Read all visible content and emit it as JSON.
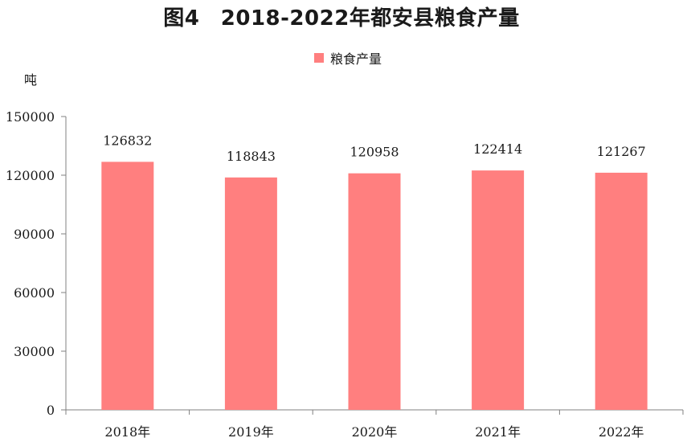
{
  "chart_data": {
    "type": "bar",
    "title": "图4　2018-2022年都安县粮食产量",
    "ylabel": "吨",
    "xlabel": "",
    "categories": [
      "2018年",
      "2019年",
      "2020年",
      "2021年",
      "2022年"
    ],
    "series": [
      {
        "name": "粮食产量",
        "values": [
          126832,
          118843,
          120958,
          122414,
          121267
        ],
        "color": "#ff7f7f"
      }
    ],
    "data_labels": [
      "126832",
      "118843",
      "120958",
      "122414",
      "121267"
    ],
    "ylim": [
      0,
      150000
    ],
    "yticks": [
      0,
      30000,
      60000,
      90000,
      120000,
      150000
    ],
    "ytick_labels": [
      "0",
      "30000",
      "60000",
      "90000",
      "120000",
      "150000"
    ],
    "grid": false,
    "legend_position": "top-center"
  }
}
